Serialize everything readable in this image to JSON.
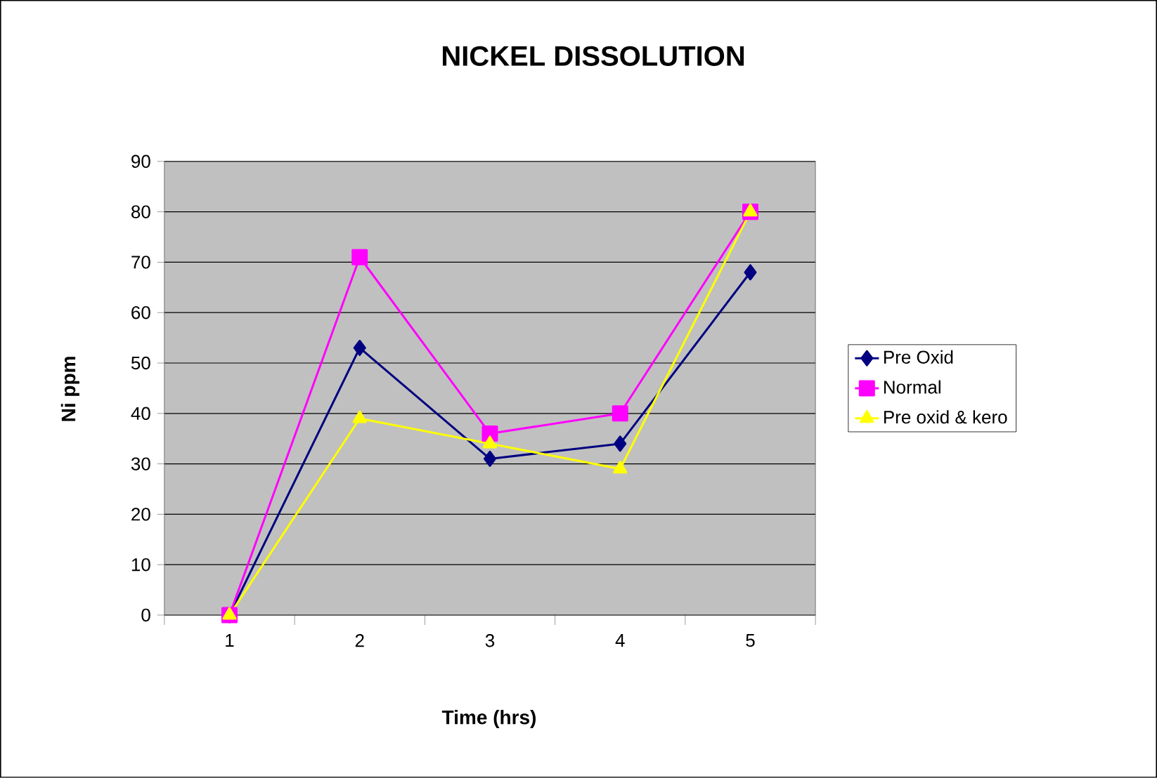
{
  "chart_data": {
    "type": "line",
    "title": "NICKEL DISSOLUTION",
    "xlabel": "Time (hrs)",
    "ylabel": "Ni ppm",
    "categories": [
      "1",
      "2",
      "3",
      "4",
      "5"
    ],
    "series": [
      {
        "name": "Pre Oxid",
        "color": "#000080",
        "marker": "diamond",
        "values": [
          0,
          53,
          31,
          34,
          68
        ]
      },
      {
        "name": "Normal",
        "color": "#ff00ff",
        "marker": "square",
        "values": [
          0,
          71,
          36,
          40,
          80
        ]
      },
      {
        "name": "Pre oxid & kero",
        "color": "#ffff00",
        "marker": "triangle",
        "values": [
          0,
          39,
          34,
          29,
          80
        ]
      }
    ],
    "ylim": [
      0,
      90
    ],
    "yticks": [
      0,
      10,
      20,
      30,
      40,
      50,
      60,
      70,
      80,
      90
    ],
    "grid": "y",
    "legend": "right",
    "line_style": "solid"
  }
}
